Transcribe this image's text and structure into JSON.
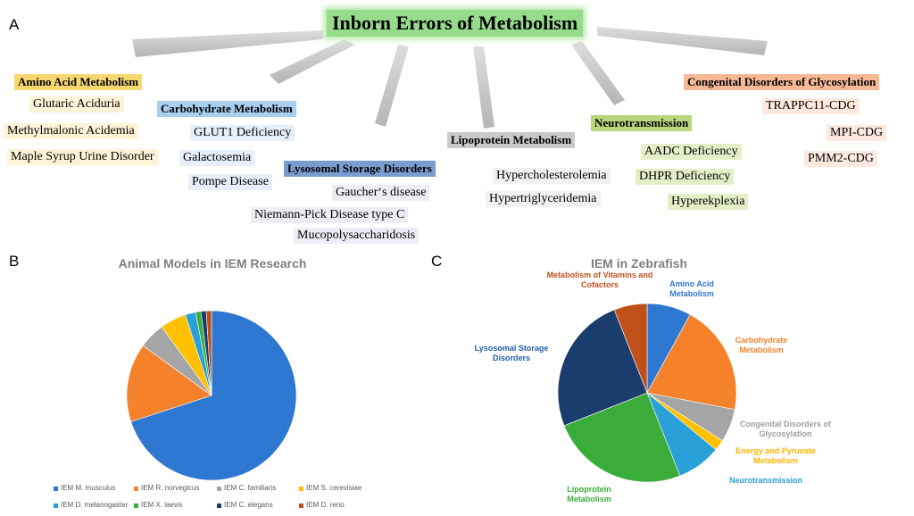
{
  "panel_labels": [
    "A",
    "B",
    "C"
  ],
  "diagram": {
    "title": "Inborn Errors of Metabolism",
    "groups": [
      {
        "name": "Amino Acid Metabolism",
        "items": [
          "Glutaric Aciduria",
          "Methylmalonic Acidemia",
          "Maple Syrup Urine Disorder"
        ]
      },
      {
        "name": "Carbohydrate Metabolism",
        "items": [
          "GLUT1 Deficiency",
          "Galactosemia",
          "Pompe Disease"
        ]
      },
      {
        "name": "Lysosomal Storage Disorders",
        "items": [
          "Gaucher‘s disease",
          "Niemann-Pick Disease type C",
          "Mucopolysaccharidosis"
        ]
      },
      {
        "name": "Lipoprotein Metabolism",
        "items": [
          "Hypercholesterolemia",
          "Hypertriglyceridemia"
        ]
      },
      {
        "name": "Neurotransmission",
        "items": [
          "AADC Deficiency",
          "DHPR Deficiency",
          "Hyperekplexia"
        ]
      },
      {
        "name": "Congenital Disorders of Glycosylation",
        "items": [
          "TRAPPC11-CDG",
          "MPI-CDG",
          "PMM2-CDG"
        ]
      }
    ]
  },
  "chart_data": [
    {
      "type": "pie",
      "title": "Animal Models in IEM Research",
      "categories": [
        "IEM M. musculus",
        "IEM R. norvegicus",
        "IEM C. familiaris",
        "IEM S. cerevisiae",
        "IEM D. melanogaster",
        "IEM X. laevis",
        "IEM C. elegans",
        "IEM D. rerio"
      ],
      "values": [
        70,
        15,
        5,
        5,
        2,
        1,
        1,
        1
      ],
      "colors": [
        "#2f78d2",
        "#f5822a",
        "#a5a5a5",
        "#ffc000",
        "#2aa0d8",
        "#3aac3a",
        "#1b3d6e",
        "#c0501a"
      ],
      "legend": "bottom"
    },
    {
      "type": "pie",
      "title": "IEM in Zebrafish",
      "categories": [
        "Amino Acid Metabolism",
        "Carbohydrate Metabolism",
        "Congenital Disorders of Glycosylation",
        "Energy and Pyruvate Metabolism",
        "Neurotransmission",
        "Lipoprotein Metabolism",
        "Lysosomal Storage Disorders",
        "Metabolism of Vitamins and Cofactors"
      ],
      "values": [
        8,
        20,
        6,
        2,
        8,
        25,
        25,
        6
      ],
      "colors": [
        "#2f78d2",
        "#f5822a",
        "#a5a5a5",
        "#ffc000",
        "#2aa0d8",
        "#3aac3a",
        "#1b3d6e",
        "#c0501a"
      ],
      "labels": "outside"
    }
  ]
}
